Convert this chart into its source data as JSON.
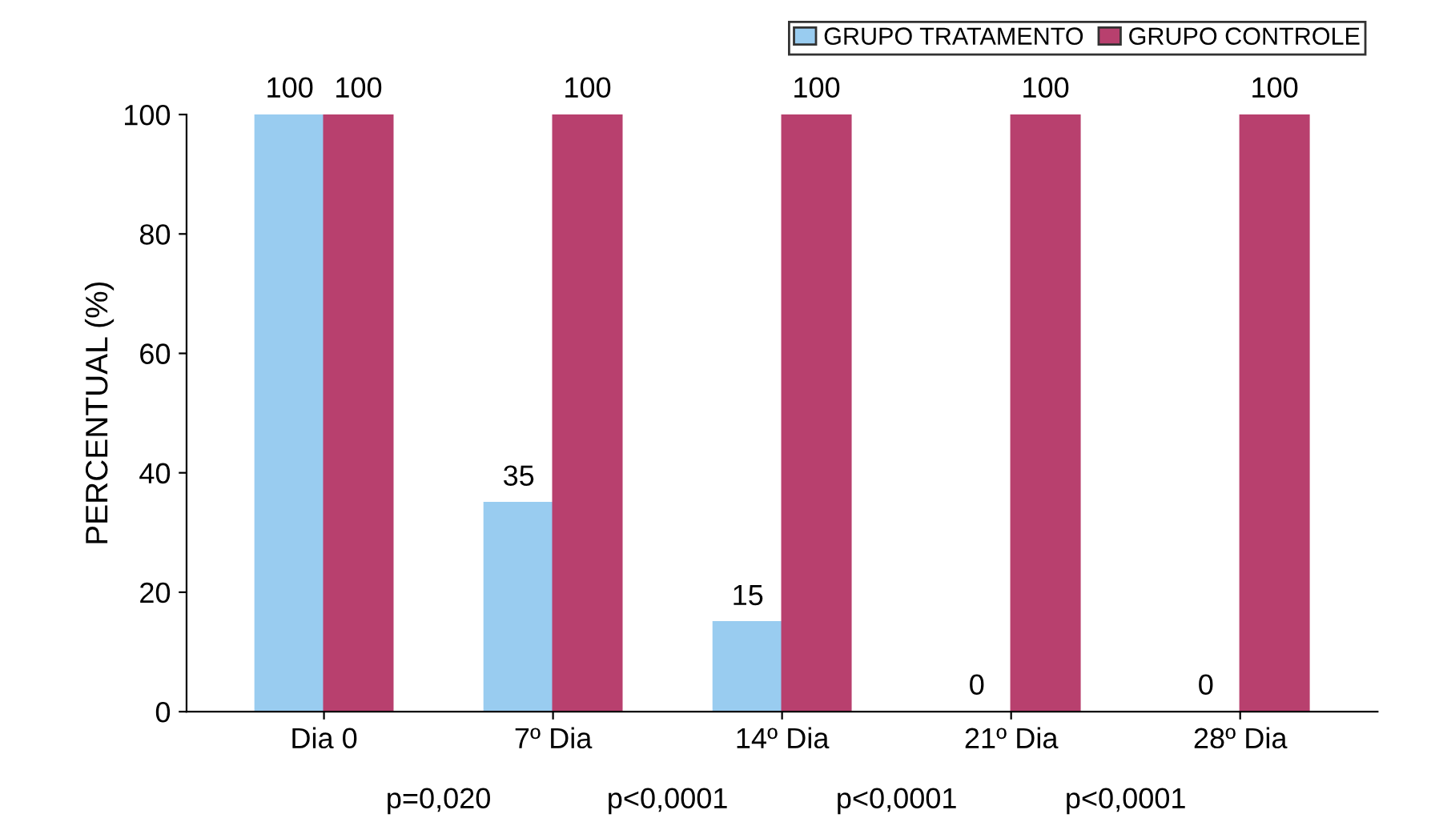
{
  "chart_data": {
    "type": "bar",
    "ylabel": "PERCENTUAL (%)",
    "categories": [
      "Dia 0",
      "7º Dia",
      "14º Dia",
      "21º Dia",
      "28º Dia"
    ],
    "series": [
      {
        "name": "GRUPO TRATAMENTO",
        "color": "#99ccf0",
        "values": [
          100,
          35,
          15,
          0,
          0
        ]
      },
      {
        "name": "GRUPO CONTROLE",
        "color": "#b8406e",
        "values": [
          100,
          100,
          100,
          100,
          100
        ]
      }
    ],
    "ylim": [
      0,
      100
    ],
    "yticks": [
      0,
      20,
      40,
      60,
      80,
      100
    ],
    "grid": false,
    "legend": "top right",
    "data_labels": true,
    "annotations": [
      "p=0,020",
      "p<0,0001",
      "p<0,0001",
      "p<0,0001"
    ]
  }
}
